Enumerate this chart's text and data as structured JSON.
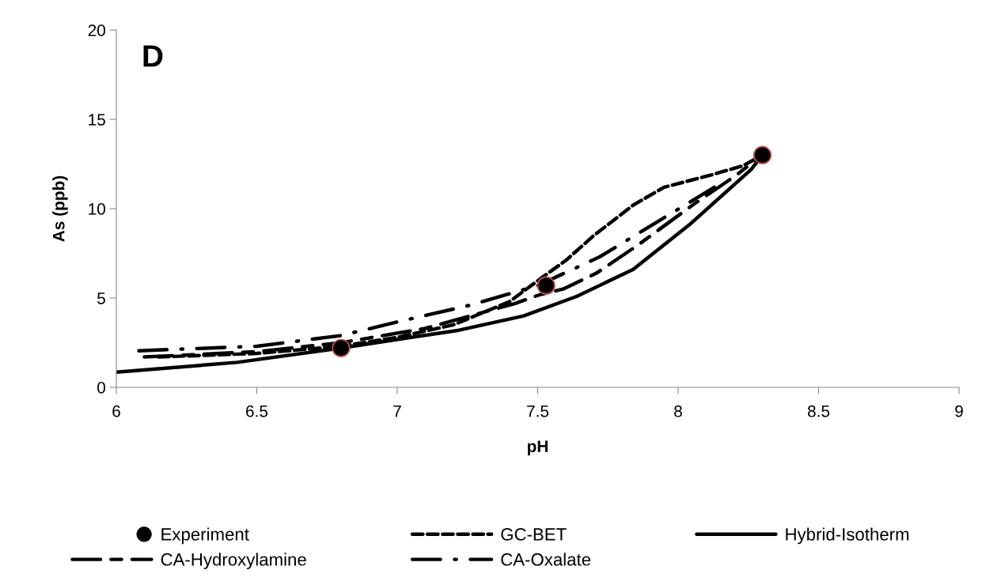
{
  "chart_data": {
    "type": "line",
    "xlabel": "pH",
    "ylabel": "As (ppb)",
    "annotations": [
      "D"
    ],
    "xlim": [
      6,
      9
    ],
    "xticks": [
      6,
      6.5,
      7,
      7.5,
      8,
      8.5,
      9
    ],
    "ylim": [
      0,
      20
    ],
    "yticks": [
      0,
      5,
      10,
      15,
      20
    ],
    "grid": false,
    "legend": "bottom",
    "series": [
      {
        "name": "Experiment",
        "type": "scatter",
        "marker": "circle",
        "color": "#000000",
        "x": [
          6.8,
          7.53,
          8.3
        ],
        "values": [
          2.2,
          5.7,
          13.0
        ]
      },
      {
        "name": "GC-BET",
        "color": "#000000",
        "line_style": "dashed",
        "x": [
          6.15,
          6.5,
          6.8,
          7.0,
          7.2,
          7.4,
          7.52,
          7.6,
          7.7,
          7.84,
          7.95,
          8.12,
          8.23,
          8.3
        ],
        "values": [
          1.7,
          1.9,
          2.3,
          2.8,
          3.5,
          4.8,
          6.2,
          7.1,
          8.5,
          10.2,
          11.2,
          11.9,
          12.4,
          13.0
        ]
      },
      {
        "name": "Hybrid-Isotherm",
        "color": "#000000",
        "line_style": "solid",
        "x": [
          6.0,
          6.43,
          6.8,
          7.22,
          7.45,
          7.64,
          7.84,
          8.04,
          8.26,
          8.3
        ],
        "values": [
          0.85,
          1.4,
          2.2,
          3.2,
          4.0,
          5.1,
          6.6,
          9.1,
          12.2,
          13.0
        ]
      },
      {
        "name": "CA-Hydroxylamine",
        "color": "#000000",
        "line_style": "longdash",
        "x": [
          6.1,
          6.5,
          6.8,
          7.1,
          7.42,
          7.51,
          7.59,
          7.71,
          7.86,
          8.06,
          8.2,
          8.3
        ],
        "values": [
          1.7,
          2.0,
          2.5,
          3.3,
          4.7,
          5.2,
          5.5,
          6.4,
          8.0,
          10.3,
          11.8,
          13.0
        ]
      },
      {
        "name": "CA-Oxalate",
        "color": "#000000",
        "line_style": "dashdot",
        "x": [
          6.08,
          6.5,
          6.8,
          7.01,
          7.26,
          7.5,
          7.72,
          7.94,
          8.15
        ],
        "values": [
          2.05,
          2.3,
          2.9,
          3.7,
          4.6,
          5.7,
          7.3,
          9.4,
          11.4
        ]
      }
    ]
  }
}
